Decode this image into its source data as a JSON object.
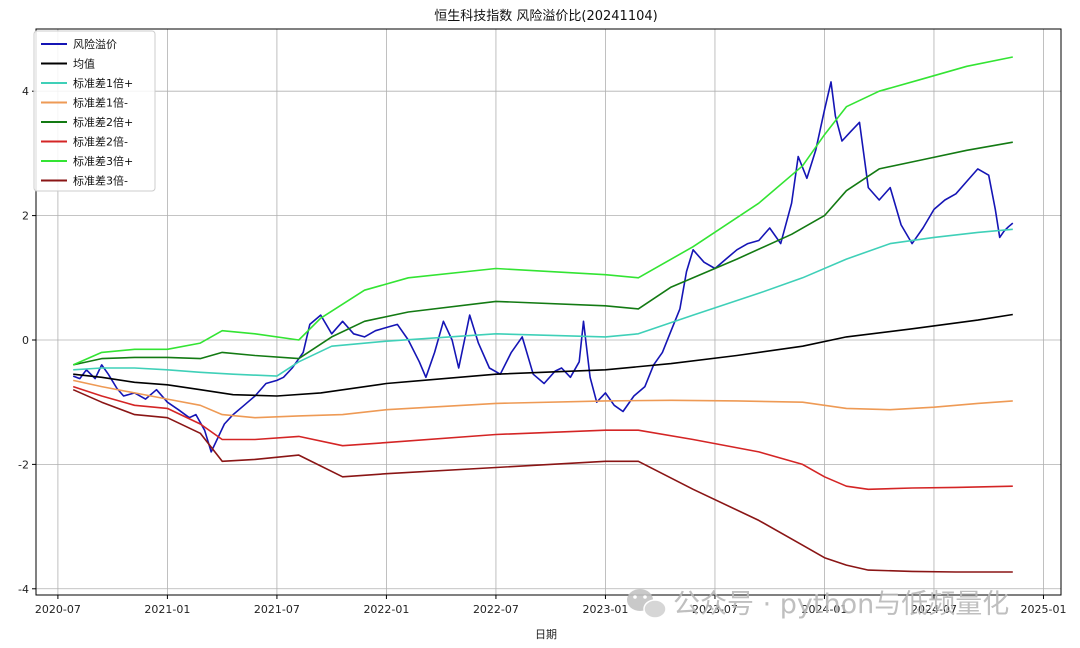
{
  "chart_data": {
    "type": "line",
    "title": "恒生科技指数 风险溢价比(20241104)",
    "xlabel": "日期",
    "ylabel": "",
    "x_ticks": [
      "2020-07",
      "2021-01",
      "2021-07",
      "2022-01",
      "2022-07",
      "2023-01",
      "2023-07",
      "2024-01",
      "2024-07",
      "2025-01"
    ],
    "y_ticks": [
      "-4",
      "-2",
      "0",
      "2",
      "4"
    ],
    "xlim": [
      2020.4,
      2025.08
    ],
    "ylim": [
      -4.1,
      5.0
    ],
    "grid": true,
    "legend_position": "top-left",
    "series": [
      {
        "name": "风险溢价",
        "color": "#1515b5",
        "x": [
          2020.57,
          2020.6,
          2020.63,
          2020.67,
          2020.7,
          2020.73,
          2020.77,
          2020.8,
          2020.85,
          2020.9,
          2020.95,
          2021.0,
          2021.05,
          2021.1,
          2021.13,
          2021.17,
          2021.2,
          2021.24,
          2021.26,
          2021.3,
          2021.35,
          2021.4,
          2021.45,
          2021.5,
          2021.53,
          2021.57,
          2021.59,
          2021.62,
          2021.65,
          2021.7,
          2021.75,
          2021.8,
          2021.85,
          2021.9,
          2021.95,
          2022.0,
          2022.05,
          2022.1,
          2022.15,
          2022.18,
          2022.22,
          2022.26,
          2022.3,
          2022.33,
          2022.38,
          2022.42,
          2022.47,
          2022.52,
          2022.57,
          2022.62,
          2022.67,
          2022.72,
          2022.77,
          2022.8,
          2022.84,
          2022.88,
          2022.9,
          2022.93,
          2022.96,
          2023.0,
          2023.04,
          2023.08,
          2023.13,
          2023.18,
          2023.22,
          2023.26,
          2023.3,
          2023.34,
          2023.37,
          2023.4,
          2023.45,
          2023.5,
          2023.55,
          2023.6,
          2023.65,
          2023.7,
          2023.75,
          2023.8,
          2023.85,
          2023.88,
          2023.92,
          2023.96,
          2024.0,
          2024.03,
          2024.05,
          2024.08,
          2024.12,
          2024.16,
          2024.2,
          2024.25,
          2024.3,
          2024.35,
          2024.4,
          2024.45,
          2024.5,
          2024.55,
          2024.6,
          2024.65,
          2024.7,
          2024.75,
          2024.78,
          2024.8,
          2024.82,
          2024.84,
          2024.86
        ],
        "y": [
          -0.58,
          -0.62,
          -0.48,
          -0.62,
          -0.4,
          -0.55,
          -0.78,
          -0.9,
          -0.85,
          -0.95,
          -0.8,
          -1.0,
          -1.12,
          -1.25,
          -1.2,
          -1.45,
          -1.8,
          -1.5,
          -1.35,
          -1.2,
          -1.05,
          -0.9,
          -0.7,
          -0.65,
          -0.6,
          -0.45,
          -0.35,
          -0.2,
          0.25,
          0.4,
          0.1,
          0.3,
          0.1,
          0.05,
          0.15,
          0.2,
          0.25,
          0.0,
          -0.35,
          -0.6,
          -0.2,
          0.3,
          0.0,
          -0.45,
          0.4,
          -0.05,
          -0.45,
          -0.55,
          -0.2,
          0.05,
          -0.55,
          -0.7,
          -0.5,
          -0.45,
          -0.6,
          -0.35,
          0.3,
          -0.6,
          -1.0,
          -0.85,
          -1.05,
          -1.15,
          -0.9,
          -0.75,
          -0.4,
          -0.2,
          0.15,
          0.5,
          1.1,
          1.45,
          1.25,
          1.15,
          1.3,
          1.45,
          1.55,
          1.6,
          1.8,
          1.55,
          2.2,
          2.95,
          2.6,
          3.05,
          3.7,
          4.15,
          3.6,
          3.2,
          3.35,
          3.5,
          2.45,
          2.25,
          2.45,
          1.85,
          1.55,
          1.8,
          2.1,
          2.25,
          2.35,
          2.55,
          2.75,
          2.65,
          2.1,
          1.65,
          1.75,
          1.82,
          1.88
        ]
      },
      {
        "name": "均值",
        "color": "#000000",
        "x": [
          2020.57,
          2020.7,
          2020.85,
          2021.0,
          2021.15,
          2021.3,
          2021.5,
          2021.7,
          2022.0,
          2022.5,
          2023.0,
          2023.3,
          2023.6,
          2023.9,
          2024.1,
          2024.4,
          2024.7,
          2024.86
        ],
        "y": [
          -0.55,
          -0.6,
          -0.68,
          -0.72,
          -0.8,
          -0.88,
          -0.9,
          -0.85,
          -0.7,
          -0.55,
          -0.48,
          -0.38,
          -0.25,
          -0.1,
          0.05,
          0.18,
          0.32,
          0.41
        ]
      },
      {
        "name": "标准差1倍+",
        "color": "#3fd0b8",
        "x": [
          2020.57,
          2020.7,
          2020.85,
          2021.0,
          2021.15,
          2021.3,
          2021.5,
          2021.6,
          2021.75,
          2022.0,
          2022.5,
          2023.0,
          2023.15,
          2023.4,
          2023.7,
          2023.9,
          2024.1,
          2024.3,
          2024.5,
          2024.7,
          2024.86
        ],
        "y": [
          -0.48,
          -0.45,
          -0.45,
          -0.48,
          -0.52,
          -0.55,
          -0.58,
          -0.35,
          -0.1,
          -0.02,
          0.1,
          0.05,
          0.1,
          0.4,
          0.75,
          1.0,
          1.3,
          1.55,
          1.65,
          1.73,
          1.78
        ]
      },
      {
        "name": "标准差1倍-",
        "color": "#ee9a55",
        "x": [
          2020.57,
          2020.7,
          2020.85,
          2021.0,
          2021.15,
          2021.25,
          2021.4,
          2021.6,
          2021.8,
          2022.0,
          2022.5,
          2023.0,
          2023.3,
          2023.6,
          2023.9,
          2024.1,
          2024.3,
          2024.5,
          2024.7,
          2024.86
        ],
        "y": [
          -0.65,
          -0.75,
          -0.85,
          -0.95,
          -1.05,
          -1.2,
          -1.25,
          -1.22,
          -1.2,
          -1.12,
          -1.02,
          -0.98,
          -0.97,
          -0.98,
          -1.0,
          -1.1,
          -1.12,
          -1.08,
          -1.02,
          -0.98
        ]
      },
      {
        "name": "标准差2倍+",
        "color": "#137a13",
        "x": [
          2020.57,
          2020.7,
          2020.85,
          2021.0,
          2021.15,
          2021.25,
          2021.4,
          2021.6,
          2021.75,
          2021.9,
          2022.1,
          2022.5,
          2023.0,
          2023.15,
          2023.3,
          2023.6,
          2023.85,
          2024.0,
          2024.1,
          2024.25,
          2024.45,
          2024.65,
          2024.86
        ],
        "y": [
          -0.4,
          -0.3,
          -0.28,
          -0.28,
          -0.3,
          -0.2,
          -0.25,
          -0.3,
          0.05,
          0.3,
          0.45,
          0.62,
          0.55,
          0.5,
          0.85,
          1.3,
          1.7,
          2.0,
          2.4,
          2.75,
          2.9,
          3.05,
          3.18
        ]
      },
      {
        "name": "标准差2倍-",
        "color": "#d42525",
        "x": [
          2020.57,
          2020.7,
          2020.85,
          2021.0,
          2021.15,
          2021.25,
          2021.4,
          2021.6,
          2021.8,
          2022.0,
          2022.5,
          2023.0,
          2023.15,
          2023.4,
          2023.7,
          2023.9,
          2024.0,
          2024.1,
          2024.2,
          2024.4,
          2024.6,
          2024.86
        ],
        "y": [
          -0.75,
          -0.9,
          -1.05,
          -1.1,
          -1.35,
          -1.6,
          -1.6,
          -1.55,
          -1.7,
          -1.65,
          -1.52,
          -1.45,
          -1.45,
          -1.6,
          -1.8,
          -2.0,
          -2.2,
          -2.35,
          -2.4,
          -2.38,
          -2.37,
          -2.35
        ]
      },
      {
        "name": "标准差3倍+",
        "color": "#33e433",
        "x": [
          2020.57,
          2020.7,
          2020.85,
          2021.0,
          2021.15,
          2021.25,
          2021.4,
          2021.6,
          2021.7,
          2021.9,
          2022.1,
          2022.5,
          2023.0,
          2023.15,
          2023.4,
          2023.7,
          2023.9,
          2024.0,
          2024.1,
          2024.25,
          2024.45,
          2024.65,
          2024.86
        ],
        "y": [
          -0.4,
          -0.2,
          -0.15,
          -0.15,
          -0.05,
          0.15,
          0.1,
          0.0,
          0.35,
          0.8,
          1.0,
          1.15,
          1.05,
          1.0,
          1.5,
          2.2,
          2.8,
          3.3,
          3.75,
          4.0,
          4.2,
          4.4,
          4.55
        ]
      },
      {
        "name": "标准差3倍-",
        "color": "#8a1515",
        "x": [
          2020.57,
          2020.7,
          2020.85,
          2021.0,
          2021.15,
          2021.25,
          2021.4,
          2021.6,
          2021.8,
          2022.0,
          2022.5,
          2023.0,
          2023.15,
          2023.4,
          2023.7,
          2023.9,
          2024.0,
          2024.1,
          2024.2,
          2024.4,
          2024.6,
          2024.86
        ],
        "y": [
          -0.8,
          -1.0,
          -1.2,
          -1.25,
          -1.5,
          -1.95,
          -1.92,
          -1.85,
          -2.2,
          -2.15,
          -2.05,
          -1.95,
          -1.95,
          -2.4,
          -2.9,
          -3.3,
          -3.5,
          -3.62,
          -3.7,
          -3.72,
          -3.73,
          -3.73
        ]
      }
    ]
  },
  "watermark": {
    "icon": "wechat-icon",
    "text": "公众号 · python与低频量化"
  }
}
